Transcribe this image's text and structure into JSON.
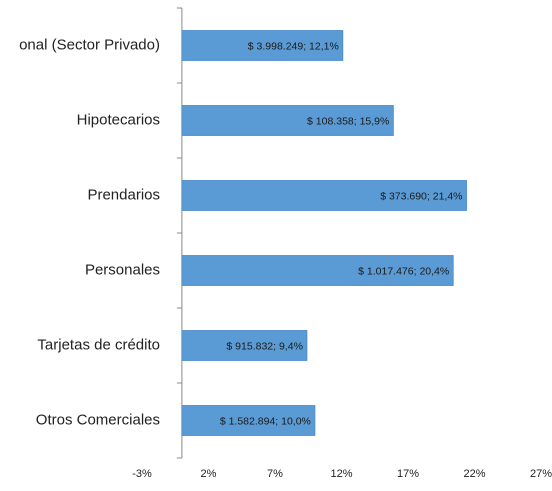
{
  "chart_data": {
    "type": "barh",
    "categories": [
      "onal (Sector Privado)",
      "Hipotecarios",
      "Prendarios",
      "Personales",
      "Tarjetas de crédito",
      "Otros Comerciales"
    ],
    "values": [
      12.1,
      15.9,
      21.4,
      20.4,
      9.4,
      10.0
    ],
    "value_labels": [
      "$ 3.998.249; 12,1%",
      "$ 108.358; 15,9%",
      "$ 373.690; 21,4%",
      "$ 1.017.476; 20,4%",
      "$ 915.832; 9,4%",
      "$ 1.582.894; 10,0%"
    ],
    "color": "#5b9bd5",
    "xlim": [
      -3,
      27
    ],
    "xticks": [
      {
        "value": -3,
        "label": "-3%"
      },
      {
        "value": 2,
        "label": "2%"
      },
      {
        "value": 7,
        "label": "7%"
      },
      {
        "value": 12,
        "label": "12%"
      },
      {
        "value": 17,
        "label": "17%"
      },
      {
        "value": 22,
        "label": "22%"
      },
      {
        "value": 27,
        "label": "27%"
      }
    ],
    "grid": false
  }
}
